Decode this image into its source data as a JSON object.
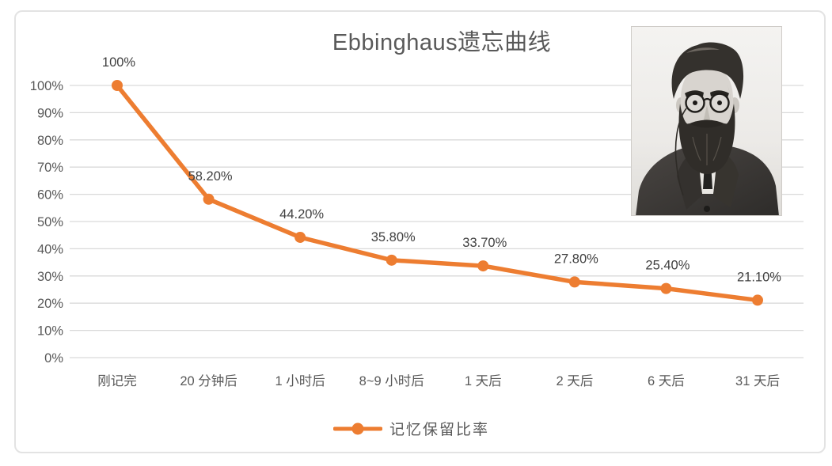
{
  "chart_data": {
    "type": "line",
    "title": "Ebbinghaus遗忘曲线",
    "categories": [
      "刚记完",
      "20 分钟后",
      "1 小时后",
      "8~9 小时后",
      "1 天后",
      "2 天后",
      "6 天后",
      "31 天后"
    ],
    "series": [
      {
        "name": "记忆保留比率",
        "values": [
          100,
          58.2,
          44.2,
          35.8,
          33.7,
          27.8,
          25.4,
          21.1
        ]
      }
    ],
    "data_labels": [
      "100%",
      "58.20%",
      "44.20%",
      "35.80%",
      "33.70%",
      "27.80%",
      "25.40%",
      "21.10%"
    ],
    "y_ticks": [
      "0%",
      "10%",
      "20%",
      "30%",
      "40%",
      "50%",
      "60%",
      "70%",
      "80%",
      "90%",
      "100%"
    ],
    "ylim": [
      0,
      100
    ],
    "grid": true,
    "legend_position": "bottom",
    "line_color": "#ED7D31",
    "axis_text_color": "#595959",
    "data_label_color": "#404040",
    "grid_color": "#D9D9D9"
  },
  "legend": {
    "label": "记忆保留比率"
  },
  "portrait": {
    "subject": "Hermann Ebbinghaus black-and-white photograph"
  }
}
